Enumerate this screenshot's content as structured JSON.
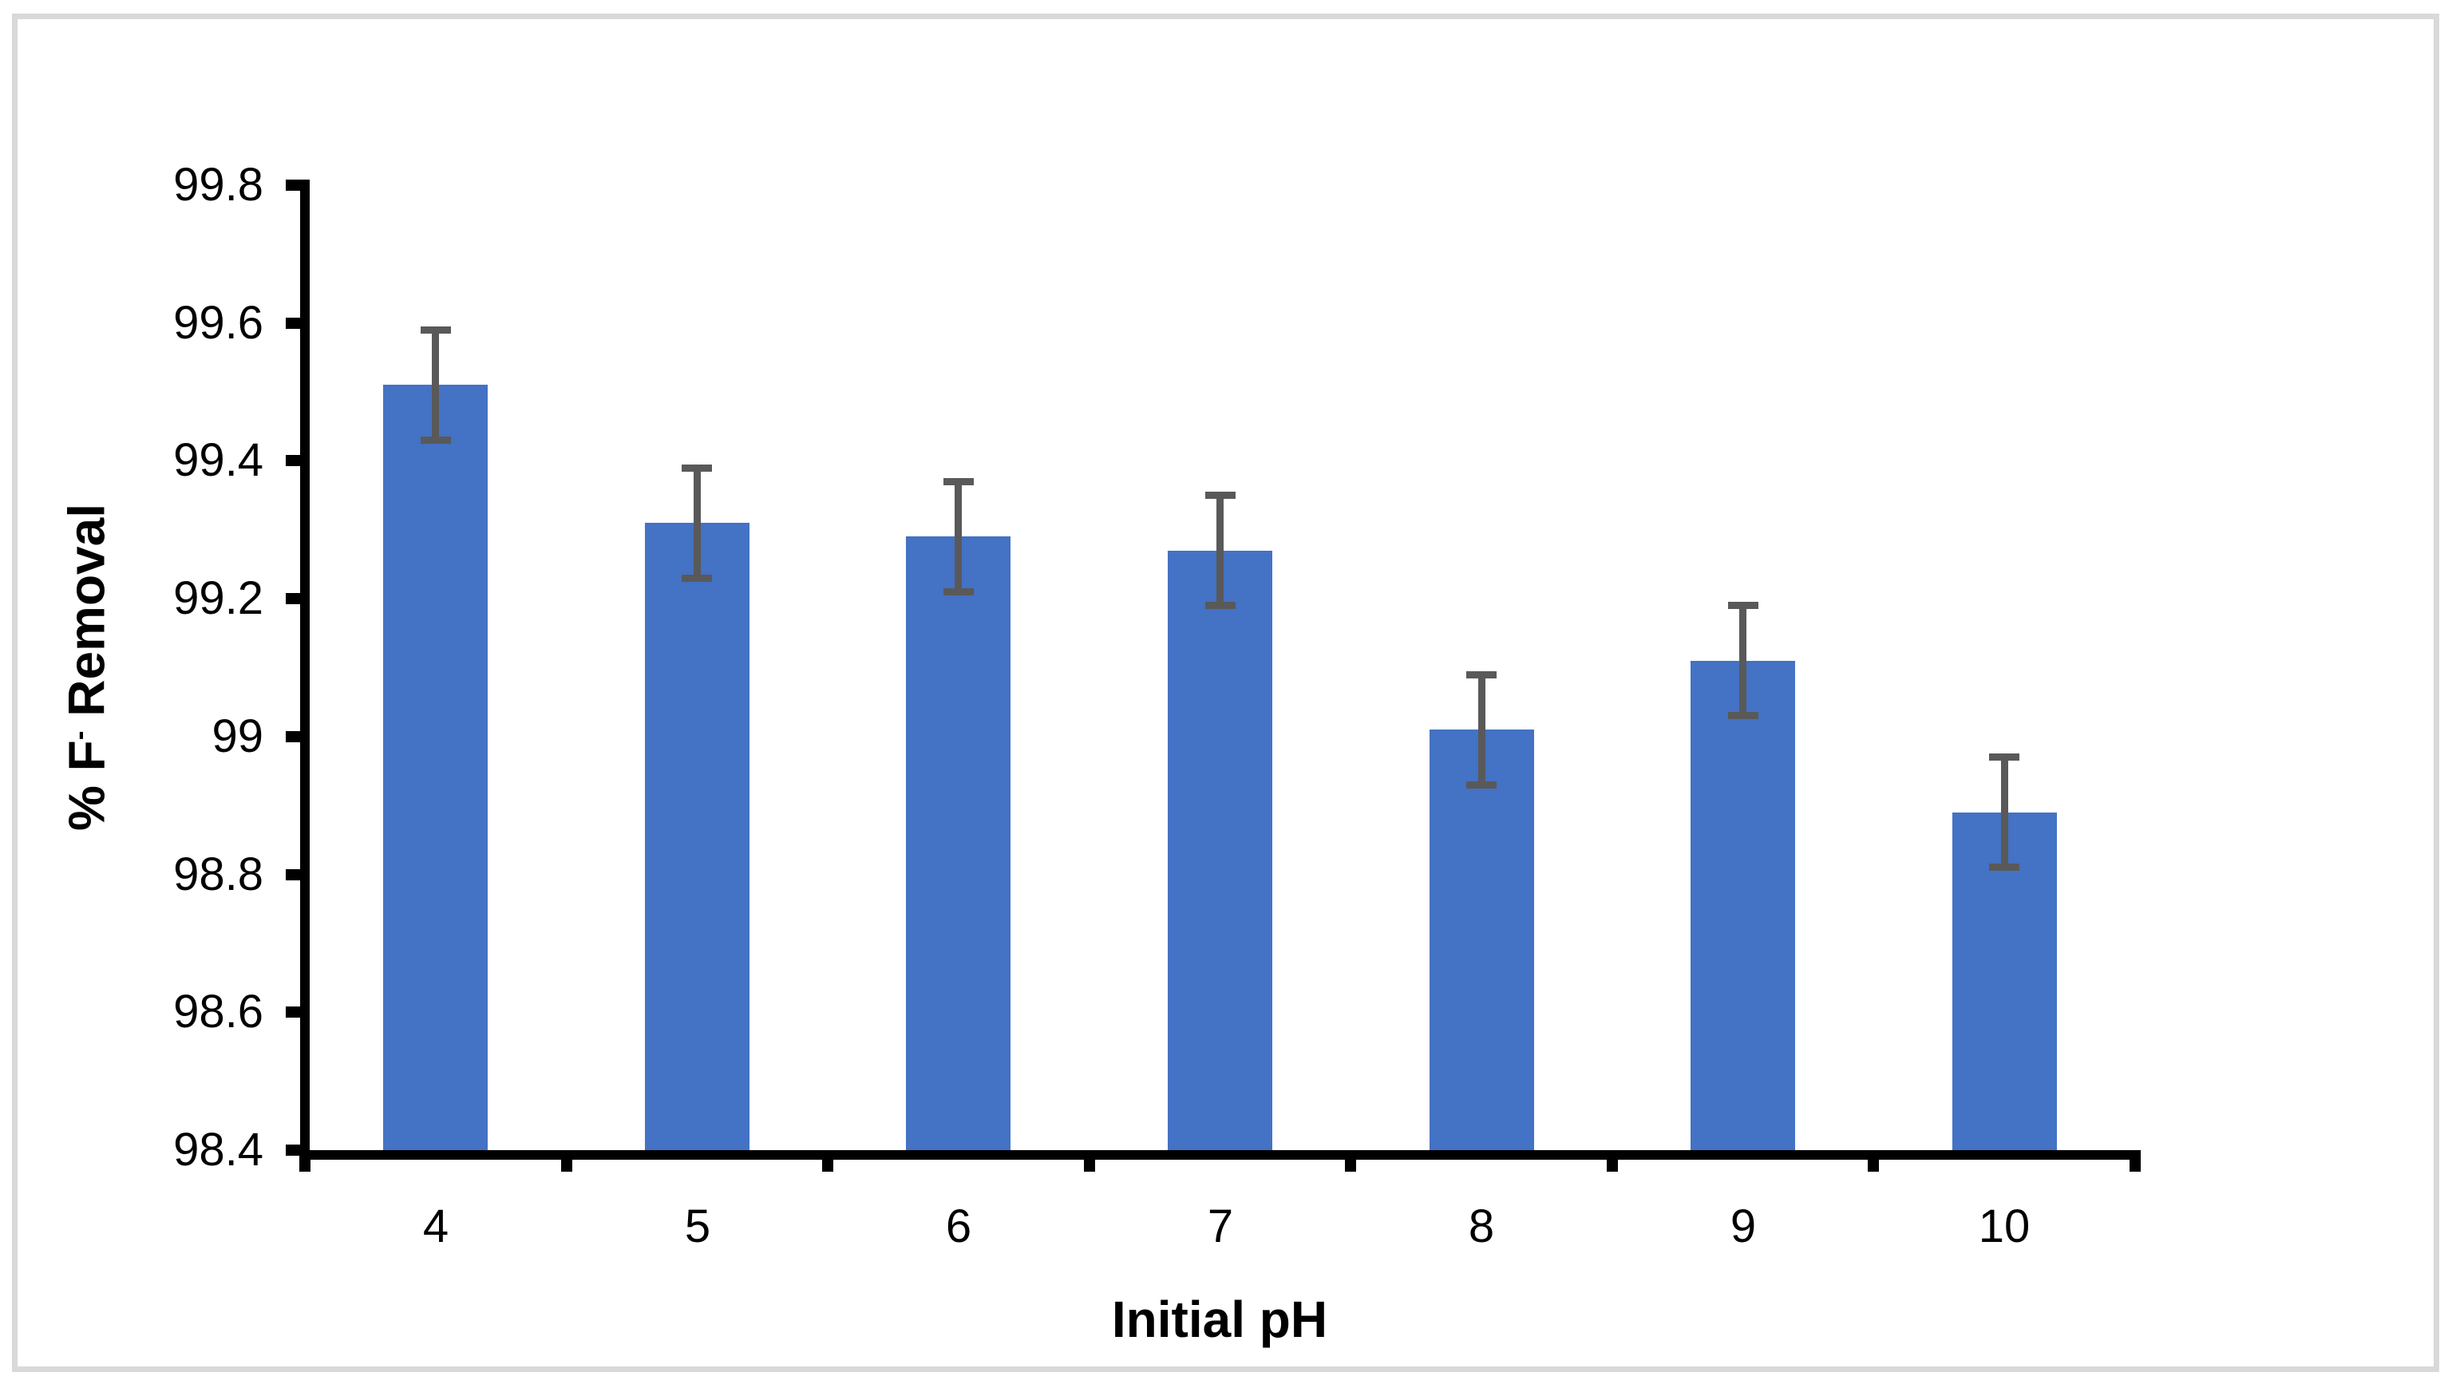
{
  "figure": {
    "background_color": "#FFFFFF",
    "frame_border_color": "#D9D9D9"
  },
  "chart_data": {
    "type": "bar",
    "title": "",
    "xlabel": "Initial pH",
    "ylabel": "% F⁻ Removal",
    "ylabel_parts": {
      "prefix": "% F",
      "superscript": "-",
      "suffix": " Removal"
    },
    "categories": [
      "4",
      "5",
      "6",
      "7",
      "8",
      "9",
      "10"
    ],
    "values": [
      99.51,
      99.31,
      99.29,
      99.27,
      99.01,
      99.11,
      98.89
    ],
    "error_bars": [
      0.08,
      0.08,
      0.08,
      0.08,
      0.08,
      0.08,
      0.08
    ],
    "ylim": [
      98.4,
      99.8
    ],
    "ytick_step": 0.2,
    "ytick_labels": [
      "98.4",
      "98.6",
      "98.8",
      "99",
      "99.2",
      "99.4",
      "99.6",
      "99.8"
    ],
    "grid": false,
    "legend": false,
    "bar_color": "#4472C4",
    "error_bar_color": "#595959",
    "axis_color": "#000000",
    "text_color": "#000000"
  }
}
